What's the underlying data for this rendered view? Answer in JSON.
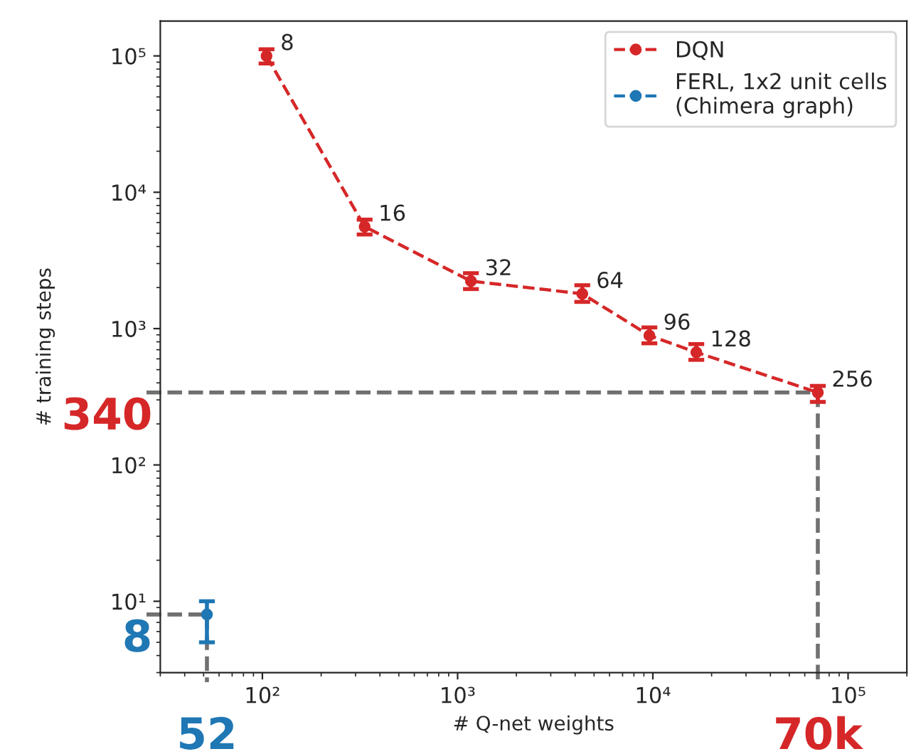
{
  "chart_data": {
    "type": "line",
    "xlabel": "# Q-net weights",
    "ylabel": "# training steps",
    "log": "xy",
    "xlim": [
      30,
      200000
    ],
    "ylim": [
      3,
      180000
    ],
    "xticks": [
      {
        "value": 100,
        "label": "10²"
      },
      {
        "value": 1000,
        "label": "10³"
      },
      {
        "value": 10000,
        "label": "10⁴"
      },
      {
        "value": 100000,
        "label": "10⁵"
      }
    ],
    "yticks": [
      {
        "value": 10,
        "label": "10¹"
      },
      {
        "value": 100,
        "label": "10²"
      },
      {
        "value": 1000,
        "label": "10³"
      },
      {
        "value": 10000,
        "label": "10⁴"
      },
      {
        "value": 100000,
        "label": "10⁵"
      }
    ],
    "series": [
      {
        "name": "DQN",
        "color": "#d62728",
        "x": [
          105,
          334,
          1170,
          4350,
          9600,
          16700,
          70000
        ],
        "values": [
          100000,
          5600,
          2230,
          1800,
          890,
          670,
          340
        ],
        "errors": [
          [
            88000,
            112000
          ],
          [
            4900,
            6300
          ],
          [
            1950,
            2550
          ],
          [
            1570,
            2080
          ],
          [
            780,
            1020
          ],
          [
            590,
            770
          ],
          [
            290,
            380
          ]
        ]
      },
      {
        "name": "FERL, 1x2 unit cells\n(Chimera graph)",
        "color": "#1f77b4",
        "x": [
          52
        ],
        "values": [
          8
        ],
        "errors": [
          [
            5,
            10
          ]
        ]
      }
    ],
    "marker": "circle",
    "line_style": "dashed",
    "grid": false,
    "legend": "top right",
    "ref_lines": [
      {
        "axis": "y",
        "value": 340,
        "label": "340",
        "color": "#707070",
        "line_style": "dashed"
      },
      {
        "axis": "x",
        "value": 70000,
        "label": "70k",
        "color": "#707070",
        "line_style": "dashed"
      },
      {
        "axis": "y",
        "value": 8,
        "label": "8",
        "color": "#707070",
        "line_style": "dashed"
      },
      {
        "axis": "x",
        "value": 52,
        "label": "52",
        "color": "#707070",
        "line_style": "dashed"
      }
    ],
    "annotations": [
      {
        "text": "8",
        "x": 105,
        "y": 100000
      },
      {
        "text": "16",
        "x": 334,
        "y": 5600
      },
      {
        "text": "32",
        "x": 1170,
        "y": 2230
      },
      {
        "text": "64",
        "x": 4350,
        "y": 1800
      },
      {
        "text": "96",
        "x": 9600,
        "y": 890
      },
      {
        "text": "128",
        "x": 16700,
        "y": 670
      },
      {
        "text": "256",
        "x": 70000,
        "y": 340
      }
    ]
  }
}
